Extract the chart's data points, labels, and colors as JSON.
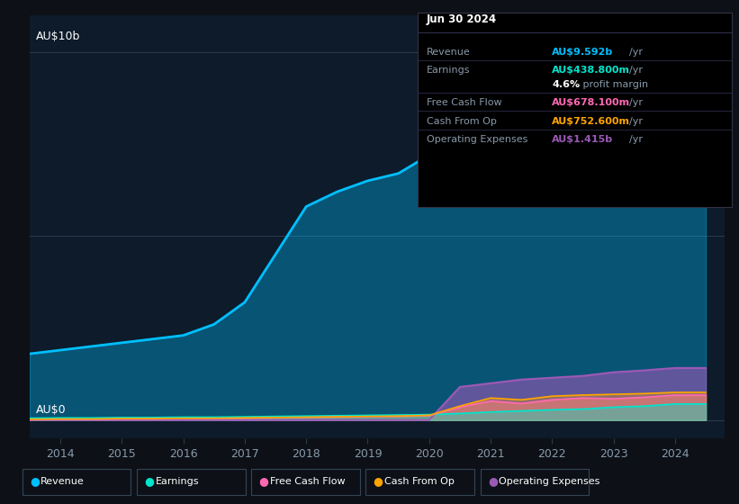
{
  "background_color": "#0d1117",
  "plot_bg_color": "#0d1b2a",
  "years": [
    2013.5,
    2014,
    2014.5,
    2015,
    2015.5,
    2016,
    2016.5,
    2017,
    2017.5,
    2018,
    2018.5,
    2019,
    2019.5,
    2020,
    2020.5,
    2021,
    2021.5,
    2022,
    2022.5,
    2023,
    2023.5,
    2024,
    2024.5
  ],
  "revenue": [
    1.8,
    1.9,
    2.0,
    2.1,
    2.2,
    2.3,
    2.6,
    3.2,
    4.5,
    5.8,
    6.2,
    6.5,
    6.7,
    7.2,
    8.2,
    8.8,
    9.1,
    9.3,
    9.4,
    9.55,
    9.5,
    9.592,
    9.592
  ],
  "earnings": [
    0.05,
    0.06,
    0.06,
    0.07,
    0.07,
    0.08,
    0.08,
    0.09,
    0.1,
    0.11,
    0.12,
    0.13,
    0.14,
    0.15,
    0.18,
    0.22,
    0.25,
    0.28,
    0.3,
    0.35,
    0.38,
    0.4388,
    0.4388
  ],
  "free_cash_flow": [
    0.01,
    0.02,
    0.02,
    0.03,
    0.03,
    0.04,
    0.04,
    0.05,
    0.06,
    0.07,
    0.08,
    0.09,
    0.1,
    0.12,
    0.35,
    0.52,
    0.45,
    0.55,
    0.6,
    0.58,
    0.62,
    0.6781,
    0.6781
  ],
  "cash_from_op": [
    0.02,
    0.03,
    0.03,
    0.04,
    0.04,
    0.05,
    0.05,
    0.06,
    0.07,
    0.08,
    0.09,
    0.1,
    0.11,
    0.13,
    0.38,
    0.6,
    0.55,
    0.65,
    0.68,
    0.7,
    0.72,
    0.7526,
    0.7526
  ],
  "op_expenses": [
    0.0,
    0.0,
    0.0,
    0.0,
    0.0,
    0.0,
    0.0,
    0.0,
    0.0,
    0.0,
    0.0,
    0.0,
    0.0,
    0.0,
    0.9,
    1.0,
    1.1,
    1.15,
    1.2,
    1.3,
    1.35,
    1.415,
    1.415
  ],
  "revenue_color": "#00bfff",
  "earnings_color": "#00e5cc",
  "free_cash_flow_color": "#ff69b4",
  "cash_from_op_color": "#ffa500",
  "op_expenses_color": "#9b59b6",
  "grid_color": "#2a3a4a",
  "text_color": "#8899aa",
  "title_text_color": "#ffffff",
  "ylabel_top": "AU$10b",
  "ylabel_bot": "AU$0",
  "xlim": [
    2013.5,
    2024.8
  ],
  "ylim": [
    -0.5,
    11.0
  ],
  "x_ticks": [
    2014,
    2015,
    2016,
    2017,
    2018,
    2019,
    2020,
    2021,
    2022,
    2023,
    2024
  ],
  "info_box": {
    "date": "Jun 30 2024",
    "revenue_label": "Revenue",
    "revenue_value": "AU$9.592b",
    "revenue_unit": "/yr",
    "earnings_label": "Earnings",
    "earnings_value": "AU$438.800m",
    "earnings_unit": "/yr",
    "profit_bold": "4.6%",
    "profit_rest": " profit margin",
    "fcf_label": "Free Cash Flow",
    "fcf_value": "AU$678.100m",
    "fcf_unit": "/yr",
    "cfop_label": "Cash From Op",
    "cfop_value": "AU$752.600m",
    "cfop_unit": "/yr",
    "opex_label": "Operating Expenses",
    "opex_value": "AU$1.415b",
    "opex_unit": "/yr"
  },
  "legend": [
    {
      "label": "Revenue",
      "color": "#00bfff"
    },
    {
      "label": "Earnings",
      "color": "#00e5cc"
    },
    {
      "label": "Free Cash Flow",
      "color": "#ff69b4"
    },
    {
      "label": "Cash From Op",
      "color": "#ffa500"
    },
    {
      "label": "Operating Expenses",
      "color": "#9b59b6"
    }
  ]
}
